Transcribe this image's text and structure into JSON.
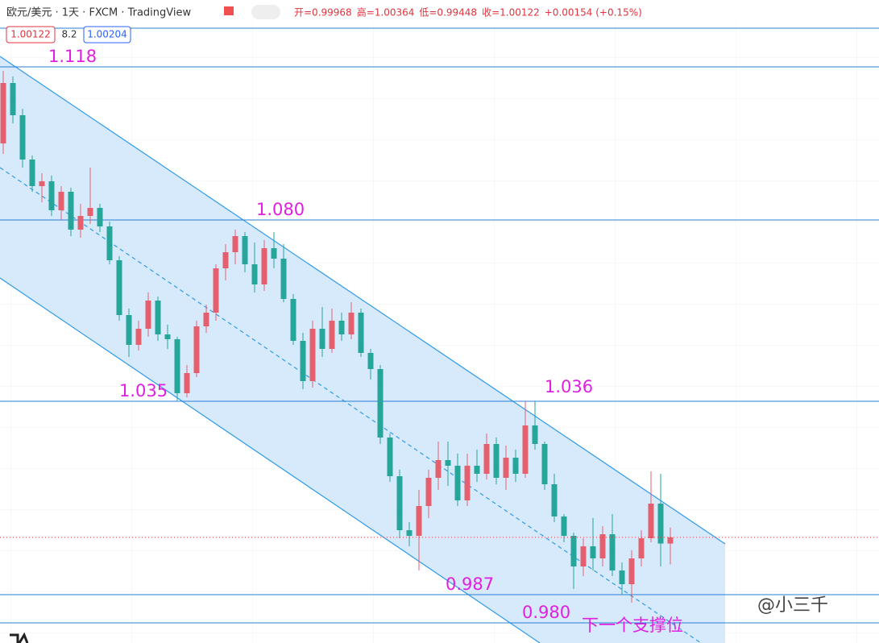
{
  "header": {
    "symbol": "欧元/美元 · 1天 · FXCM · TradingView",
    "ohlc": [
      "开=0.99968",
      "高=1.00364",
      "低=0.99448",
      "收=1.00122",
      "+0.00154 (+0.15%)"
    ],
    "badges": [
      "1.00122",
      "8.2",
      "1.00204"
    ]
  },
  "watermark": "@小三千",
  "support_note": "下一个支撑位",
  "chart_data": {
    "type": "candlestick",
    "up_color": "#e5606e",
    "down_color": "#26a69a",
    "ylim": [
      0.975,
      1.1346
    ],
    "levels": [
      1.1276,
      1.118,
      1.08,
      1.035,
      0.987,
      0.98
    ],
    "annotations": [
      {
        "value": 1.118,
        "label": "1.118"
      },
      {
        "value": 1.08,
        "label": "1.080"
      },
      {
        "value": 1.035,
        "label": "1.035"
      },
      {
        "value": 1.036,
        "label": "1.036"
      },
      {
        "value": 0.987,
        "label": "0.987"
      },
      {
        "value": 0.98,
        "label": "0.980"
      }
    ],
    "open": [
      1.099,
      1.114,
      1.106,
      1.095,
      1.0884,
      1.0896,
      1.0824,
      1.087,
      1.0776,
      1.081,
      1.083,
      1.0784,
      1.07,
      1.0564,
      1.049,
      1.053,
      1.06,
      1.0516,
      1.0504,
      1.037,
      1.042,
      1.0536,
      1.057,
      1.068,
      1.072,
      1.076,
      1.069,
      1.064,
      1.073,
      1.0704,
      1.0604,
      1.05,
      1.04,
      1.053,
      1.048,
      1.055,
      1.0516,
      1.057,
      1.047,
      1.043,
      1.026,
      1.0164,
      1.003,
      1.0016,
      1.009,
      1.016,
      1.0204,
      1.019,
      1.0104,
      1.019,
      1.017,
      1.0244,
      1.016,
      1.021,
      1.017,
      1.029,
      1.0244,
      1.0144,
      1.0064,
      1.0016,
      0.994,
      0.999,
      0.996,
      1.002,
      0.993,
      0.9896,
      0.996,
      1.001,
      1.0096,
      0.99968
    ],
    "high": [
      1.117,
      1.1156,
      1.1076,
      1.096,
      1.0916,
      1.091,
      1.0884,
      1.088,
      1.084,
      1.093,
      1.084,
      1.0796,
      1.071,
      1.058,
      1.055,
      1.062,
      1.061,
      1.054,
      1.051,
      1.044,
      1.055,
      1.059,
      1.069,
      1.074,
      1.0776,
      1.077,
      1.0744,
      1.075,
      1.077,
      1.074,
      1.0616,
      1.052,
      1.055,
      1.0584,
      1.058,
      1.057,
      1.0596,
      1.058,
      1.048,
      1.044,
      1.027,
      1.018,
      1.005,
      1.013,
      1.018,
      1.025,
      1.025,
      1.022,
      1.022,
      1.023,
      1.027,
      1.026,
      1.024,
      1.023,
      1.035,
      1.035,
      1.025,
      1.017,
      1.007,
      1.0024,
      1.001,
      1.006,
      1.004,
      1.007,
      0.995,
      0.998,
      1.003,
      1.0176,
      1.017,
      1.00364
    ],
    "low": [
      1.0964,
      1.104,
      1.093,
      1.087,
      1.0844,
      1.081,
      1.08,
      1.076,
      1.0756,
      1.079,
      1.077,
      1.069,
      1.055,
      1.046,
      1.0476,
      1.051,
      1.05,
      1.048,
      1.035,
      1.036,
      1.041,
      1.052,
      1.055,
      1.065,
      1.069,
      1.067,
      1.062,
      1.0624,
      1.068,
      1.0596,
      1.049,
      1.038,
      1.0384,
      1.046,
      1.047,
      1.05,
      1.0504,
      1.046,
      1.0404,
      1.0244,
      1.015,
      1.001,
      0.999,
      0.993,
      1.006,
      1.013,
      1.014,
      1.009,
      1.009,
      1.015,
      1.0156,
      1.0144,
      1.013,
      1.015,
      1.016,
      1.023,
      1.013,
      1.005,
      1.0,
      0.9884,
      0.9916,
      0.993,
      0.994,
      0.9916,
      0.987,
      0.985,
      0.994,
      1.0,
      0.994,
      0.99448
    ],
    "close": [
      1.114,
      1.106,
      1.095,
      1.0884,
      1.0896,
      1.0824,
      1.087,
      1.0776,
      1.081,
      1.083,
      1.0784,
      1.07,
      1.0564,
      1.049,
      1.053,
      1.06,
      1.0516,
      1.0504,
      1.037,
      1.042,
      1.0536,
      1.057,
      1.068,
      1.072,
      1.076,
      1.069,
      1.064,
      1.073,
      1.0704,
      1.0604,
      1.05,
      1.04,
      1.053,
      1.048,
      1.055,
      1.0516,
      1.057,
      1.047,
      1.043,
      1.026,
      1.0164,
      1.003,
      1.0016,
      1.009,
      1.016,
      1.0204,
      1.019,
      1.0104,
      1.019,
      1.017,
      1.0244,
      1.016,
      1.021,
      1.017,
      1.029,
      1.0244,
      1.0144,
      1.0064,
      1.0016,
      0.994,
      0.999,
      0.996,
      1.002,
      0.993,
      0.9896,
      0.996,
      1.001,
      1.0096,
      0.99968,
      1.00122
    ]
  }
}
